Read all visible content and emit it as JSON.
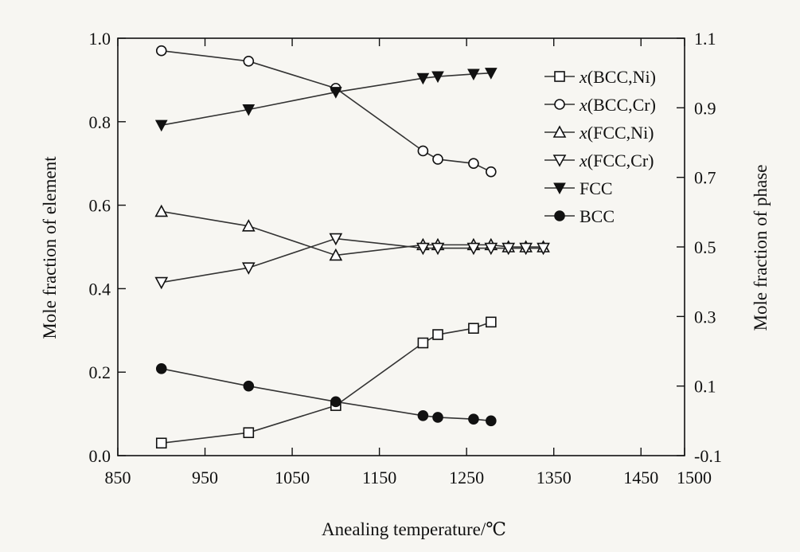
{
  "chart_data": {
    "type": "line",
    "title": "",
    "xlabel": "Anealing temperature/℃",
    "ylabel_left": "Mole fraction of element",
    "ylabel_right": "Mole fraction of phase",
    "xlim": [
      850,
      1500
    ],
    "ylim_left": [
      0.0,
      1.0
    ],
    "ylim_right": [
      -0.1,
      1.1
    ],
    "x_ticks": [
      850,
      950,
      1050,
      1150,
      1250,
      1350,
      1450,
      1500
    ],
    "x_tick_labels": [
      "850",
      "950",
      "1050",
      "1150",
      "1250",
      "1350",
      "1450",
      "1500"
    ],
    "y_left_ticks": [
      0.0,
      0.2,
      0.4,
      0.6,
      0.8,
      1.0
    ],
    "y_left_tick_labels": [
      "0.0",
      "0.2",
      "0.4",
      "0.6",
      "0.8",
      "1.0"
    ],
    "y_right_ticks": [
      -0.1,
      0.1,
      0.3,
      0.5,
      0.7,
      0.9,
      1.1
    ],
    "y_right_tick_labels": [
      "-0.1",
      "0.1",
      "0.3",
      "0.5",
      "0.7",
      "0.9",
      "1.1"
    ],
    "grid": false,
    "legend_position": "top-right",
    "series": [
      {
        "name": "x(BCC,Ni)",
        "legend_prefix": "x",
        "legend_suffix": "(BCC,Ni)",
        "axis": "left",
        "marker": "square-open",
        "points": [
          [
            900,
            0.03
          ],
          [
            1000,
            0.055
          ],
          [
            1100,
            0.12
          ],
          [
            1200,
            0.27
          ],
          [
            1217,
            0.29
          ],
          [
            1258,
            0.305
          ],
          [
            1278,
            0.32
          ]
        ]
      },
      {
        "name": "x(BCC,Cr)",
        "legend_prefix": "x",
        "legend_suffix": "(BCC,Cr)",
        "axis": "left",
        "marker": "circle-open",
        "points": [
          [
            900,
            0.97
          ],
          [
            1000,
            0.945
          ],
          [
            1100,
            0.88
          ],
          [
            1200,
            0.73
          ],
          [
            1217,
            0.71
          ],
          [
            1258,
            0.7
          ],
          [
            1278,
            0.68
          ]
        ]
      },
      {
        "name": "x(FCC,Ni)",
        "legend_prefix": "x",
        "legend_suffix": "(FCC,Ni)",
        "axis": "left",
        "marker": "triangle-up-open",
        "points": [
          [
            900,
            0.585
          ],
          [
            1000,
            0.55
          ],
          [
            1100,
            0.48
          ],
          [
            1200,
            0.505
          ],
          [
            1217,
            0.505
          ],
          [
            1258,
            0.505
          ],
          [
            1278,
            0.505
          ],
          [
            1298,
            0.5
          ],
          [
            1318,
            0.5
          ],
          [
            1338,
            0.5
          ]
        ]
      },
      {
        "name": "x(FCC,Cr)",
        "legend_prefix": "x",
        "legend_suffix": "(FCC,Cr)",
        "axis": "left",
        "marker": "triangle-down-open",
        "points": [
          [
            900,
            0.415
          ],
          [
            1000,
            0.45
          ],
          [
            1100,
            0.52
          ],
          [
            1200,
            0.497
          ],
          [
            1217,
            0.497
          ],
          [
            1258,
            0.497
          ],
          [
            1278,
            0.497
          ],
          [
            1298,
            0.497
          ],
          [
            1318,
            0.497
          ],
          [
            1338,
            0.497
          ]
        ]
      },
      {
        "name": "FCC",
        "legend_prefix": "",
        "legend_suffix": "FCC",
        "axis": "right",
        "marker": "triangle-down-filled",
        "points": [
          [
            900,
            0.85
          ],
          [
            1000,
            0.895
          ],
          [
            1100,
            0.945
          ],
          [
            1200,
            0.985
          ],
          [
            1217,
            0.99
          ],
          [
            1258,
            0.997
          ],
          [
            1278,
            1.0
          ]
        ]
      },
      {
        "name": "BCC",
        "legend_prefix": "",
        "legend_suffix": "BCC",
        "axis": "right",
        "marker": "circle-filled",
        "points": [
          [
            900,
            0.15
          ],
          [
            1000,
            0.1
          ],
          [
            1100,
            0.055
          ],
          [
            1200,
            0.015
          ],
          [
            1217,
            0.01
          ],
          [
            1258,
            0.005
          ],
          [
            1278,
            0.0
          ]
        ]
      }
    ],
    "colors": {
      "line": "#333333",
      "marker_edge": "#111111",
      "marker_fill_open": "#ffffff",
      "marker_fill_filled": "#111111",
      "background": "#f7f6f2"
    }
  }
}
